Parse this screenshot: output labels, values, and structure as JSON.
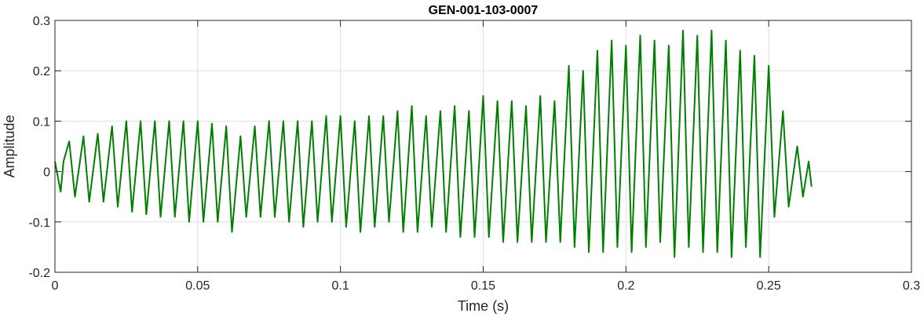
{
  "chart_data": {
    "type": "line",
    "title": "GEN-001-103-0007",
    "xlabel": "Time (s)",
    "ylabel": "Amplitude",
    "xlim": [
      0,
      0.3
    ],
    "ylim": [
      -0.2,
      0.3
    ],
    "x_ticks": [
      0,
      0.05,
      0.1,
      0.15,
      0.2,
      0.25,
      0.3
    ],
    "x_tick_labels": [
      "0",
      "0.05",
      "0.1",
      "0.15",
      "0.2",
      "0.25",
      "0.3"
    ],
    "y_ticks": [
      -0.2,
      -0.1,
      0,
      0.1,
      0.2,
      0.3
    ],
    "y_tick_labels": [
      "-0.2",
      "-0.1",
      "0",
      "0.1",
      "0.2",
      "0.3"
    ],
    "grid": true,
    "line_color": "#007f00",
    "series": [
      {
        "x": [
          0,
          0.002,
          0.003,
          0.005,
          0.007,
          0.01,
          0.012,
          0.015,
          0.017,
          0.02,
          0.022,
          0.025,
          0.027,
          0.03,
          0.032,
          0.035,
          0.037,
          0.04,
          0.042,
          0.045,
          0.047,
          0.05,
          0.052,
          0.055,
          0.057,
          0.06,
          0.062,
          0.065,
          0.067,
          0.07,
          0.072,
          0.075,
          0.077,
          0.08,
          0.082,
          0.085,
          0.087,
          0.09,
          0.092,
          0.095,
          0.097,
          0.1,
          0.102,
          0.105,
          0.107,
          0.11,
          0.112,
          0.115,
          0.117,
          0.12,
          0.122,
          0.125,
          0.127,
          0.13,
          0.132,
          0.135,
          0.137,
          0.14,
          0.142,
          0.145,
          0.147,
          0.15,
          0.152,
          0.155,
          0.157,
          0.16,
          0.162,
          0.165,
          0.167,
          0.17,
          0.172,
          0.175,
          0.177,
          0.18,
          0.182,
          0.185,
          0.187,
          0.19,
          0.192,
          0.195,
          0.197,
          0.2,
          0.202,
          0.205,
          0.207,
          0.21,
          0.212,
          0.215,
          0.217,
          0.22,
          0.222,
          0.225,
          0.227,
          0.23,
          0.232,
          0.235,
          0.237,
          0.24,
          0.242,
          0.245,
          0.247,
          0.25,
          0.252,
          0.255,
          0.257,
          0.26,
          0.262,
          0.264,
          0.265
        ],
        "y": [
          0.02,
          -0.04,
          0.02,
          0.06,
          -0.05,
          0.07,
          -0.06,
          0.075,
          -0.06,
          0.09,
          -0.07,
          0.1,
          -0.08,
          0.1,
          -0.085,
          0.1,
          -0.09,
          0.1,
          -0.09,
          0.1,
          -0.1,
          0.1,
          -0.1,
          0.095,
          -0.1,
          0.09,
          -0.12,
          0.07,
          -0.09,
          0.09,
          -0.09,
          0.1,
          -0.09,
          0.1,
          -0.1,
          0.1,
          -0.11,
          0.1,
          -0.1,
          0.11,
          -0.1,
          0.11,
          -0.11,
          0.1,
          -0.12,
          0.11,
          -0.11,
          0.11,
          -0.1,
          0.12,
          -0.12,
          0.13,
          -0.12,
          0.11,
          -0.11,
          0.12,
          -0.12,
          0.13,
          -0.13,
          0.12,
          -0.13,
          0.15,
          -0.13,
          0.14,
          -0.14,
          0.14,
          -0.14,
          0.13,
          -0.14,
          0.15,
          -0.14,
          0.14,
          -0.14,
          0.21,
          -0.15,
          0.2,
          -0.16,
          0.24,
          -0.16,
          0.26,
          -0.15,
          0.25,
          -0.16,
          0.27,
          -0.15,
          0.26,
          -0.14,
          0.25,
          -0.17,
          0.28,
          -0.15,
          0.27,
          -0.16,
          0.28,
          -0.16,
          0.26,
          -0.17,
          0.24,
          -0.15,
          0.23,
          -0.17,
          0.21,
          -0.09,
          0.12,
          -0.07,
          0.05,
          -0.05,
          0.02,
          -0.03
        ]
      }
    ]
  }
}
